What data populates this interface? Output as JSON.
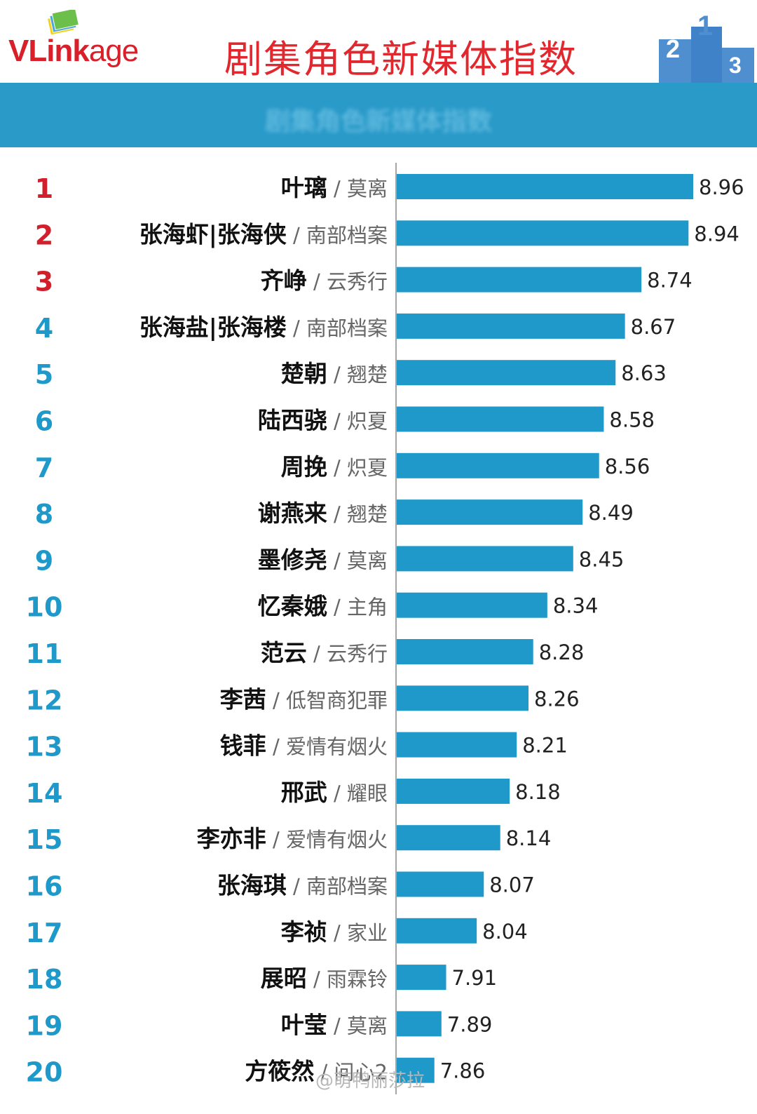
{
  "header": {
    "logo_v": "V",
    "logo_link": "Link",
    "logo_age": "age",
    "title": "剧集角色新媒体指数",
    "podium_labels": [
      "2",
      "1",
      "3"
    ]
  },
  "banner": {
    "subtitle": "剧集角色新媒体指数"
  },
  "colors": {
    "bar": "#1f99c9",
    "top3": "#d11f2b",
    "rank": "#1f99c9",
    "banner": "#2a9ac9",
    "title": "#e0282e"
  },
  "chart_data": {
    "type": "bar",
    "orientation": "horizontal",
    "xlim": [
      7.7,
      8.96
    ],
    "title": "剧集角色新媒体指数",
    "rows": [
      {
        "rank": "1",
        "name": "叶璃",
        "show": "莫离",
        "value": 8.96,
        "label": "8.96"
      },
      {
        "rank": "2",
        "name": "张海虾|张海侠",
        "show": "南部档案",
        "value": 8.94,
        "label": "8.94"
      },
      {
        "rank": "3",
        "name": "齐峥",
        "show": "云秀行",
        "value": 8.74,
        "label": "8.74"
      },
      {
        "rank": "4",
        "name": "张海盐|张海楼",
        "show": "南部档案",
        "value": 8.67,
        "label": "8.67"
      },
      {
        "rank": "5",
        "name": "楚朝",
        "show": "翘楚",
        "value": 8.63,
        "label": "8.63"
      },
      {
        "rank": "6",
        "name": "陆西骁",
        "show": "炽夏",
        "value": 8.58,
        "label": "8.58"
      },
      {
        "rank": "7",
        "name": "周挽",
        "show": "炽夏",
        "value": 8.56,
        "label": "8.56"
      },
      {
        "rank": "8",
        "name": "谢燕来",
        "show": "翘楚",
        "value": 8.49,
        "label": "8.49"
      },
      {
        "rank": "9",
        "name": "墨修尧",
        "show": "莫离",
        "value": 8.45,
        "label": "8.45"
      },
      {
        "rank": "10",
        "name": "忆秦娥",
        "show": "主角",
        "value": 8.34,
        "label": "8.34"
      },
      {
        "rank": "11",
        "name": "范云",
        "show": "云秀行",
        "value": 8.28,
        "label": "8.28"
      },
      {
        "rank": "12",
        "name": "李茜",
        "show": "低智商犯罪",
        "value": 8.26,
        "label": "8.26"
      },
      {
        "rank": "13",
        "name": "钱菲",
        "show": "爱情有烟火",
        "value": 8.21,
        "label": "8.21"
      },
      {
        "rank": "14",
        "name": "邢武",
        "show": "耀眼",
        "value": 8.18,
        "label": "8.18"
      },
      {
        "rank": "15",
        "name": "李亦非",
        "show": "爱情有烟火",
        "value": 8.14,
        "label": "8.14"
      },
      {
        "rank": "16",
        "name": "张海琪",
        "show": "南部档案",
        "value": 8.07,
        "label": "8.07"
      },
      {
        "rank": "17",
        "name": "李祯",
        "show": "家业",
        "value": 8.04,
        "label": "8.04"
      },
      {
        "rank": "18",
        "name": "展昭",
        "show": "雨霖铃",
        "value": 7.91,
        "label": "7.91"
      },
      {
        "rank": "19",
        "name": "叶莹",
        "show": "莫离",
        "value": 7.89,
        "label": "7.89"
      },
      {
        "rank": "20",
        "name": "方筱然",
        "show": "问心2",
        "value": 7.86,
        "label": "7.86"
      }
    ]
  },
  "watermark": "@萌鸭丽莎拉"
}
